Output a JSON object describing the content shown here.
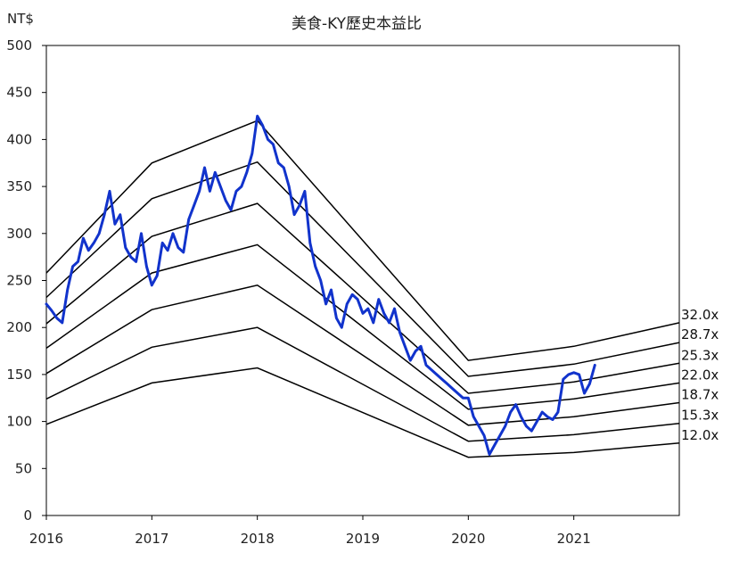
{
  "chart_data": {
    "type": "line",
    "title": "美食-KY歷史本益比",
    "ylabel": "NT$",
    "xlabel": "",
    "xlim": [
      2016,
      2022
    ],
    "ylim": [
      0,
      500
    ],
    "x_ticks": [
      2016,
      2017,
      2018,
      2019,
      2020,
      2021
    ],
    "y_ticks": [
      0,
      50,
      100,
      150,
      200,
      250,
      300,
      350,
      400,
      450,
      500
    ],
    "colors": {
      "price": "#1133cc",
      "bands": "#000000"
    },
    "pe_bands": [
      {
        "label": "32.0x",
        "x": [
          2016.0,
          2017.0,
          2018.0,
          2020.0,
          2021.0,
          2022.0
        ],
        "y": [
          258,
          375,
          420,
          165,
          180,
          205
        ]
      },
      {
        "label": "28.7x",
        "x": [
          2016.0,
          2017.0,
          2018.0,
          2020.0,
          2021.0,
          2022.0
        ],
        "y": [
          232,
          337,
          376,
          148,
          161,
          184
        ]
      },
      {
        "label": "25.3x",
        "x": [
          2016.0,
          2017.0,
          2018.0,
          2020.0,
          2021.0,
          2022.0
        ],
        "y": [
          204,
          297,
          332,
          130,
          142,
          162
        ]
      },
      {
        "label": "22.0x",
        "x": [
          2016.0,
          2017.0,
          2018.0,
          2020.0,
          2021.0,
          2022.0
        ],
        "y": [
          178,
          258,
          288,
          113,
          124,
          141
        ]
      },
      {
        "label": "18.7x",
        "x": [
          2016.0,
          2017.0,
          2018.0,
          2020.0,
          2021.0,
          2022.0
        ],
        "y": [
          151,
          219,
          245,
          96,
          105,
          120
        ]
      },
      {
        "label": "15.3x",
        "x": [
          2016.0,
          2017.0,
          2018.0,
          2020.0,
          2021.0,
          2022.0
        ],
        "y": [
          124,
          179,
          200,
          79,
          86,
          98
        ]
      },
      {
        "label": "12.0x",
        "x": [
          2016.0,
          2017.0,
          2018.0,
          2020.0,
          2021.0,
          2022.0
        ],
        "y": [
          97,
          141,
          157,
          62,
          67,
          77
        ]
      }
    ],
    "price_series": {
      "name": "Price",
      "x": [
        2016.0,
        2016.05,
        2016.1,
        2016.15,
        2016.2,
        2016.25,
        2016.3,
        2016.35,
        2016.4,
        2016.45,
        2016.5,
        2016.55,
        2016.6,
        2016.65,
        2016.7,
        2016.75,
        2016.8,
        2016.85,
        2016.9,
        2016.95,
        2017.0,
        2017.05,
        2017.1,
        2017.15,
        2017.2,
        2017.25,
        2017.3,
        2017.35,
        2017.4,
        2017.45,
        2017.5,
        2017.55,
        2017.6,
        2017.65,
        2017.7,
        2017.75,
        2017.8,
        2017.85,
        2017.9,
        2017.95,
        2018.0,
        2018.05,
        2018.1,
        2018.15,
        2018.2,
        2018.25,
        2018.3,
        2018.35,
        2018.4,
        2018.45,
        2018.5,
        2018.55,
        2018.6,
        2018.65,
        2018.7,
        2018.75,
        2018.8,
        2018.85,
        2018.9,
        2018.95,
        2019.0,
        2019.05,
        2019.1,
        2019.15,
        2019.2,
        2019.25,
        2019.3,
        2019.35,
        2019.4,
        2019.45,
        2019.5,
        2019.55,
        2019.6,
        2019.65,
        2019.7,
        2019.75,
        2019.8,
        2019.85,
        2019.9,
        2019.95,
        2020.0,
        2020.05,
        2020.1,
        2020.15,
        2020.2,
        2020.25,
        2020.3,
        2020.35,
        2020.4,
        2020.45,
        2020.5,
        2020.55,
        2020.6,
        2020.65,
        2020.7,
        2020.75,
        2020.8,
        2020.85,
        2020.9,
        2020.95,
        2021.0,
        2021.05,
        2021.1,
        2021.15,
        2021.2
      ],
      "y": [
        225,
        218,
        210,
        205,
        240,
        265,
        270,
        295,
        282,
        290,
        300,
        320,
        345,
        310,
        320,
        285,
        275,
        270,
        300,
        265,
        245,
        255,
        290,
        282,
        300,
        285,
        280,
        315,
        330,
        345,
        370,
        345,
        365,
        350,
        335,
        325,
        345,
        350,
        365,
        385,
        425,
        415,
        400,
        395,
        375,
        370,
        350,
        320,
        330,
        345,
        290,
        265,
        250,
        225,
        240,
        210,
        200,
        225,
        235,
        230,
        215,
        220,
        205,
        230,
        215,
        205,
        220,
        195,
        180,
        165,
        175,
        180,
        160,
        155,
        150,
        145,
        140,
        135,
        130,
        125,
        125,
        105,
        95,
        85,
        65,
        75,
        85,
        95,
        110,
        118,
        105,
        95,
        90,
        100,
        110,
        105,
        102,
        110,
        145,
        150,
        152,
        150,
        130,
        140,
        160
      ]
    }
  }
}
